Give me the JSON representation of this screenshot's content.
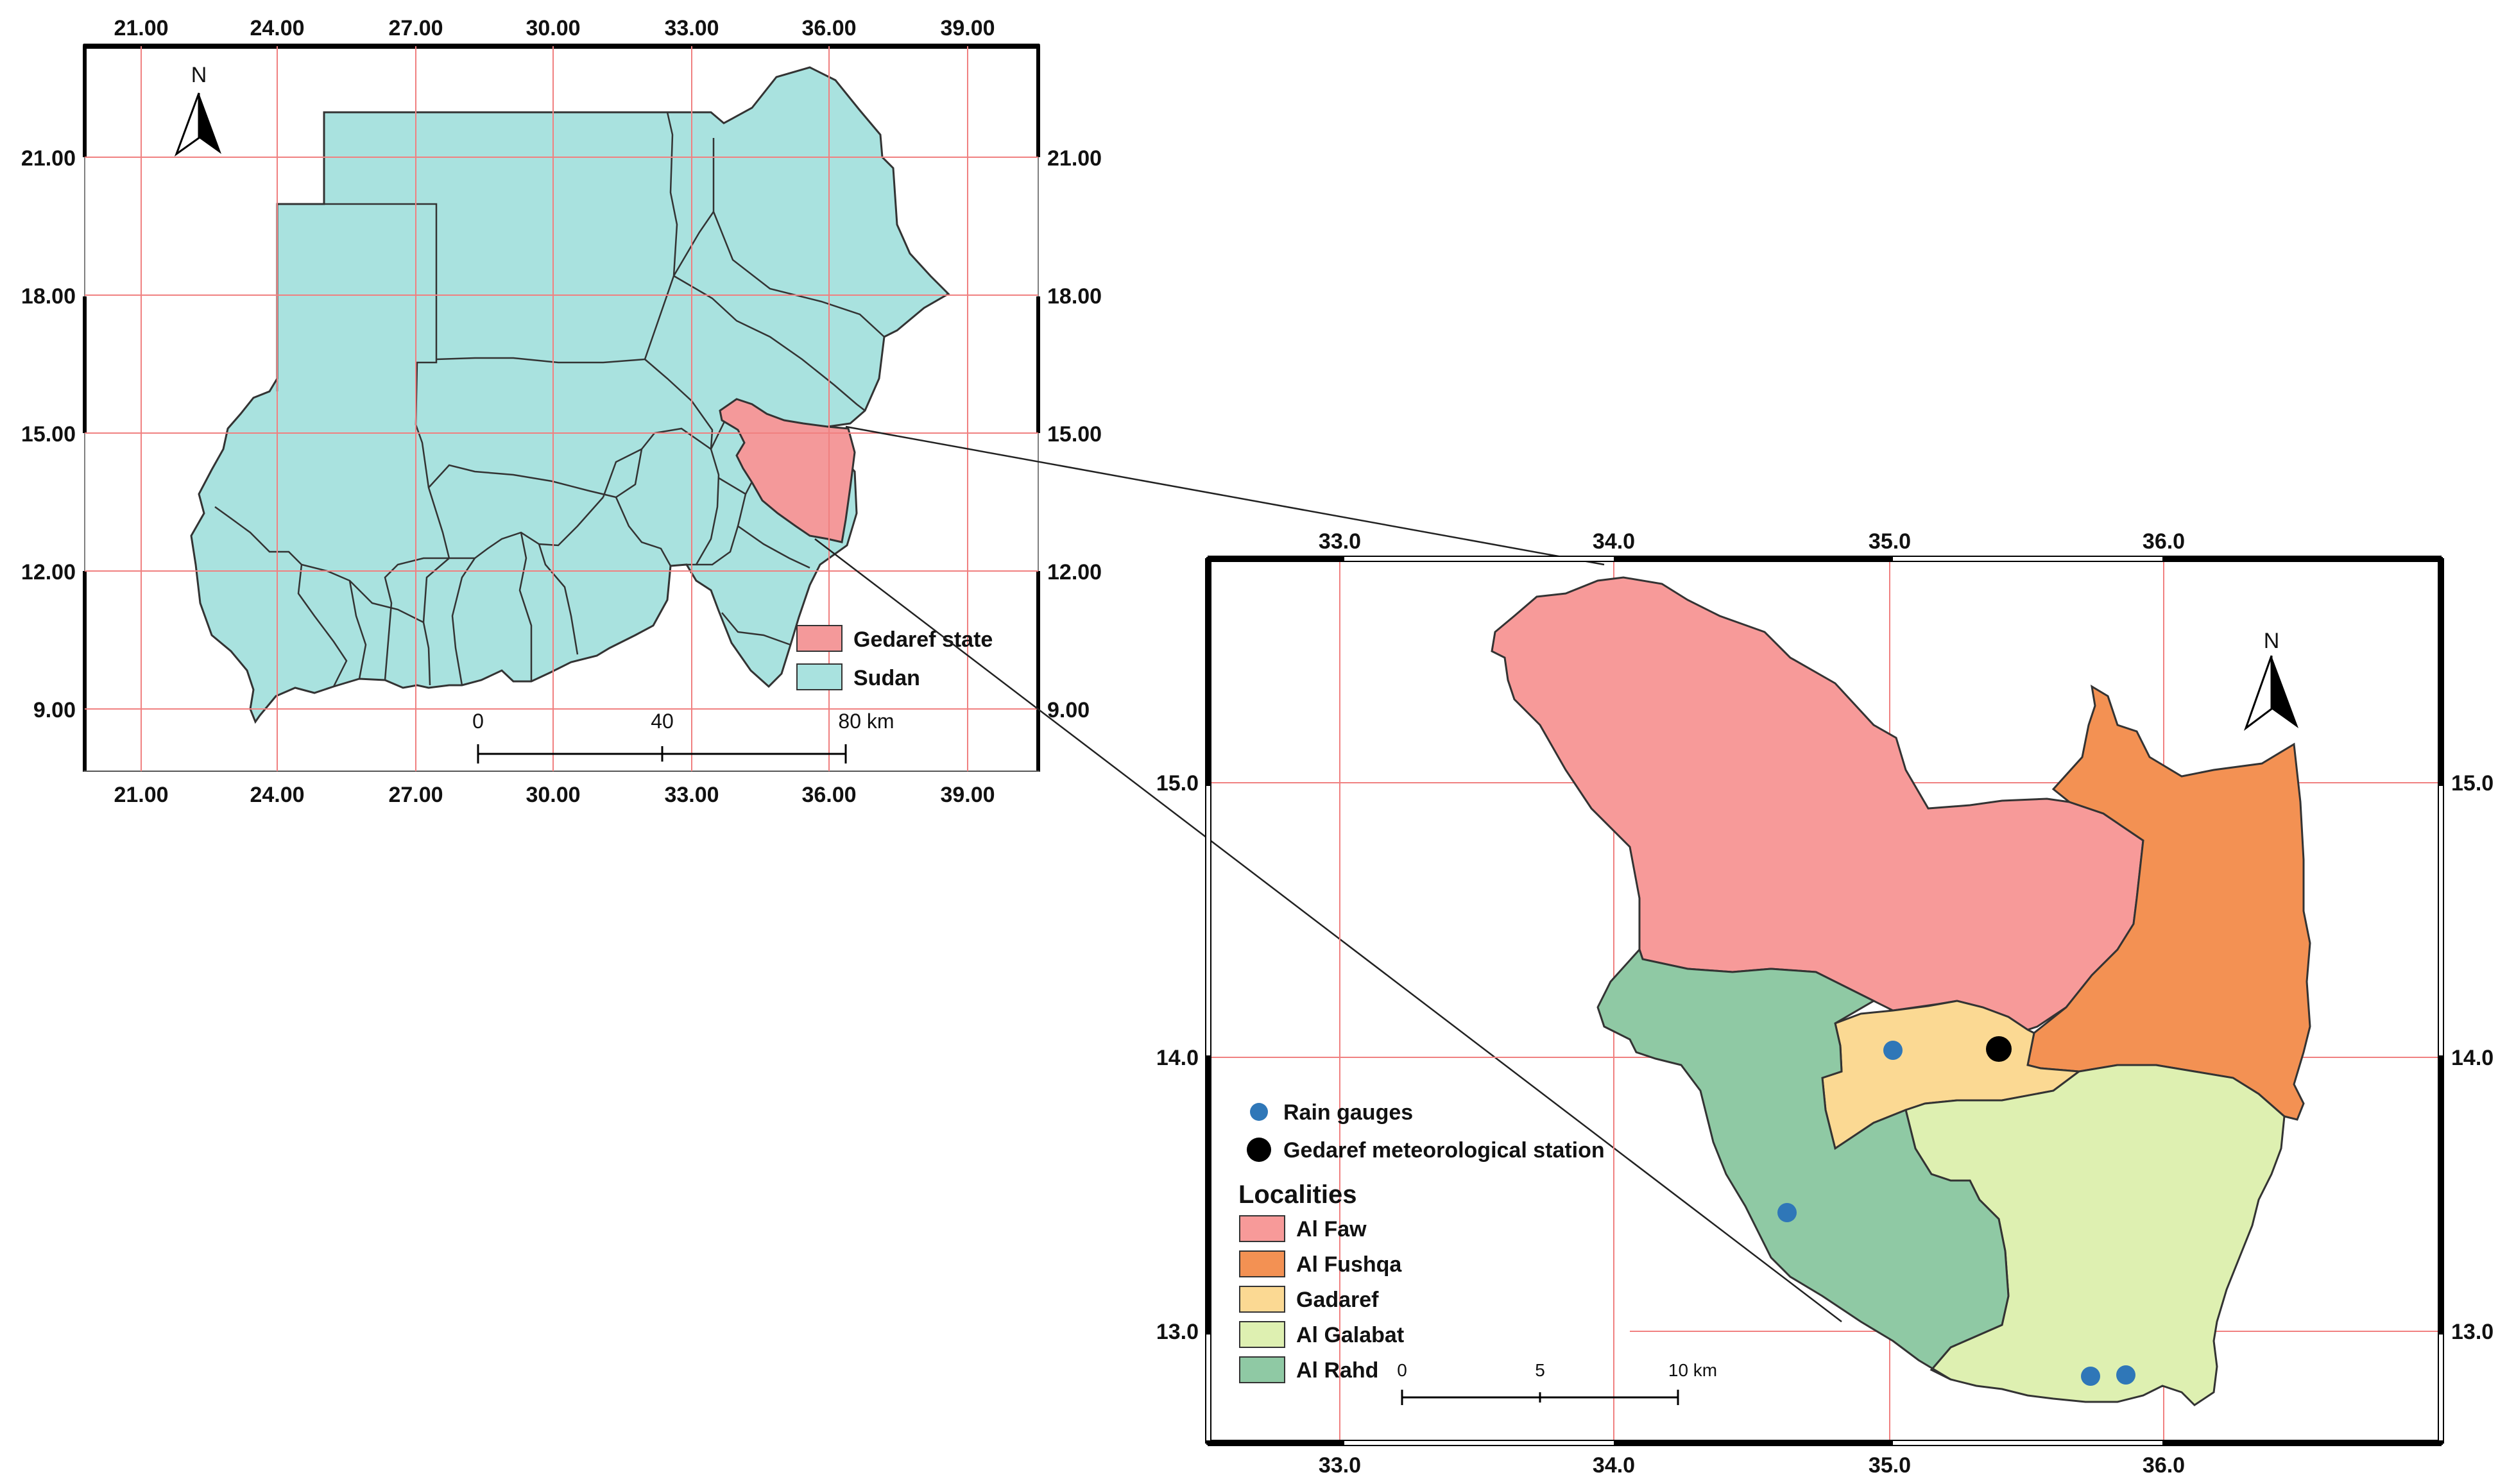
{
  "colors": {
    "sudan": "#a9e2df",
    "gedaref_state": "#f4999a",
    "al_faw": "#f79a99",
    "al_fushqa": "#f39153",
    "gadaref": "#fbd993",
    "al_galabat": "#def0b1",
    "al_rahd": "#8fc9a4",
    "rain_gauge": "#2f77b8",
    "met_station": "#000000",
    "grid": "#f08080"
  },
  "overview_map": {
    "top_ticks": [
      "21.00",
      "24.00",
      "27.00",
      "30.00",
      "33.00",
      "36.00",
      "39.00"
    ],
    "bottom_ticks": [
      "21.00",
      "24.00",
      "27.00",
      "30.00",
      "33.00",
      "36.00",
      "39.00"
    ],
    "left_ticks": [
      "21.00",
      "18.00",
      "15.00",
      "12.00",
      "9.00"
    ],
    "right_ticks": [
      "21.00",
      "18.00",
      "15.00",
      "12.00",
      "9.00"
    ],
    "north_label": "N",
    "scale_labels": [
      "0",
      "40",
      "80 km"
    ],
    "legend": [
      {
        "label": "Gedaref state",
        "color": "#f4999a"
      },
      {
        "label": "Sudan",
        "color": "#a9e2df"
      }
    ]
  },
  "detail_map": {
    "top_ticks": [
      "33.0",
      "34.0",
      "35.0",
      "36.0"
    ],
    "bottom_ticks": [
      "33.0",
      "34.0",
      "35.0",
      "36.0"
    ],
    "left_ticks": [
      "15.0",
      "14.0",
      "13.0"
    ],
    "right_ticks": [
      "15.0",
      "14.0",
      "13.0"
    ],
    "north_label": "N",
    "scale_labels": [
      "0",
      "5",
      "10 km"
    ],
    "legend_points": [
      {
        "label": "Rain gauges",
        "color": "#2f77b8"
      },
      {
        "label": "Gedaref meteorological station",
        "color": "#000000"
      }
    ],
    "legend_title": "Localities",
    "legend_localities": [
      {
        "label": "Al Faw",
        "color": "#f79a99"
      },
      {
        "label": "Al Fushqa",
        "color": "#f39153"
      },
      {
        "label": "Gadaref",
        "color": "#fbd993"
      },
      {
        "label": "Al Galabat",
        "color": "#def0b1"
      },
      {
        "label": "Al Rahd",
        "color": "#8fc9a4"
      }
    ]
  }
}
